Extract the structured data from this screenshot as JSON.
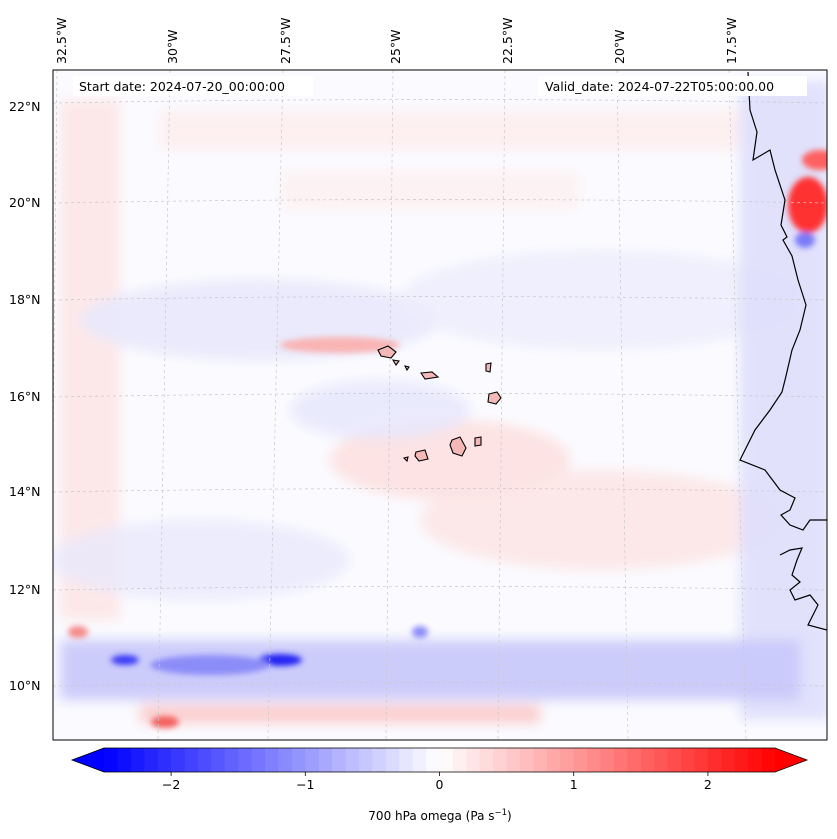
{
  "map": {
    "start_date_label": "Start date: 2024-07-20_00:00:00",
    "valid_date_label": "Valid_date: 2024-07-22T05:00:00.00",
    "longitude_labels": [
      "32.5°W",
      "30°W",
      "27.5°W",
      "25°W",
      "22.5°W",
      "20°W",
      "17.5°W"
    ],
    "latitude_labels": [
      "22°N",
      "20°N",
      "18°N",
      "16°N",
      "14°N",
      "12°N",
      "10°N"
    ],
    "field_variable": "700 hPa omega",
    "colormap": "bwr"
  },
  "colorbar": {
    "label_text": "700 hPa omega (Pa s",
    "label_exponent": "−1",
    "label_close": ")",
    "ticks": [
      {
        "value": -2,
        "label": "−2"
      },
      {
        "value": -1,
        "label": "−1"
      },
      {
        "value": 0,
        "label": "0"
      },
      {
        "value": 1,
        "label": "1"
      },
      {
        "value": 2,
        "label": "2"
      }
    ],
    "range": [
      -2.5,
      2.5
    ],
    "extend": "both",
    "colors": {
      "min": "#0000ff",
      "mid": "#ffffff",
      "max": "#ff0000"
    }
  }
}
